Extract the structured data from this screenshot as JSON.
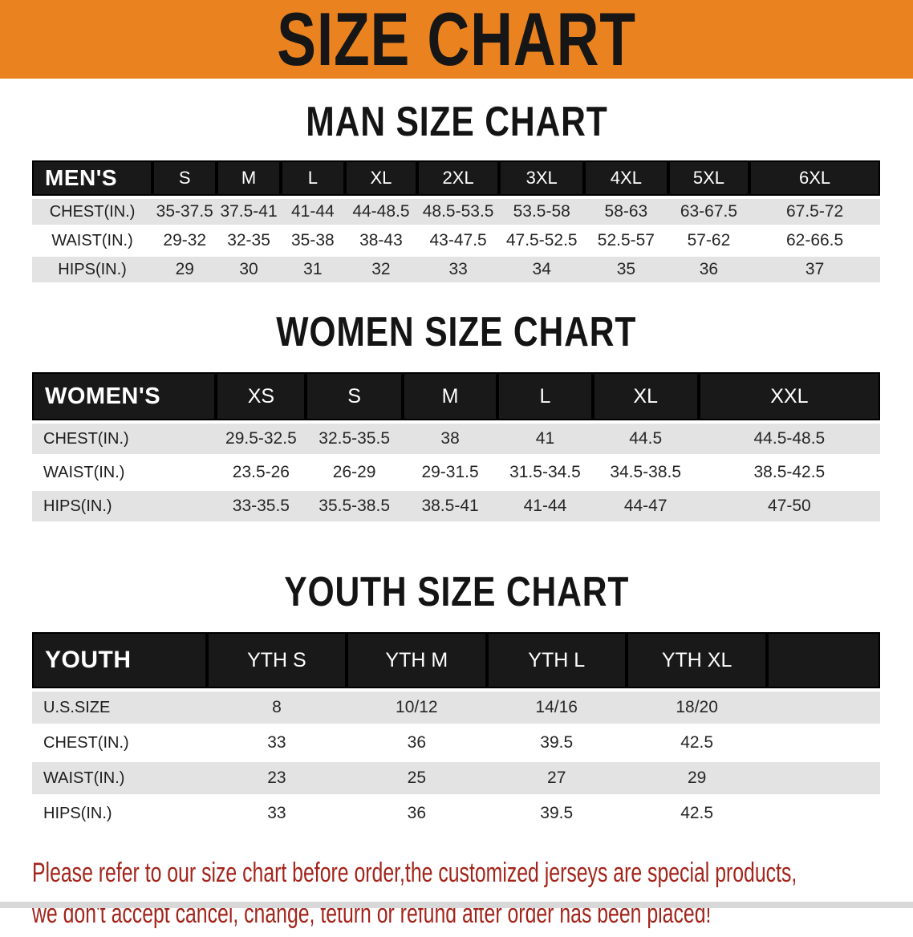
{
  "banner": {
    "title": "SIZE CHART",
    "bg_color": "#EA831F",
    "text_color": "#161616"
  },
  "sections": [
    {
      "heading": "MAN SIZE CHART",
      "table": {
        "label_header": "MEN'S",
        "size_headers": [
          "S",
          "M",
          "L",
          "XL",
          "2XL",
          "3XL",
          "4XL",
          "5XL",
          "6XL"
        ],
        "rows": [
          {
            "label": "CHEST(IN.)",
            "values": [
              "35-37.5",
              "37.5-41",
              "41-44",
              "44-48.5",
              "48.5-53.5",
              "53.5-58",
              "58-63",
              "63-67.5",
              "67.5-72"
            ]
          },
          {
            "label": "WAIST(IN.)",
            "values": [
              "29-32",
              "32-35",
              "35-38",
              "38-43",
              "43-47.5",
              "47.5-52.5",
              "52.5-57",
              "57-62",
              "62-66.5"
            ]
          },
          {
            "label": "HIPS(IN.)",
            "values": [
              "29",
              "30",
              "31",
              "32",
              "33",
              "34",
              "35",
              "36",
              "37"
            ]
          }
        ]
      }
    },
    {
      "heading": "WOMEN SIZE CHART",
      "table": {
        "label_header": "WOMEN'S",
        "size_headers": [
          "XS",
          "S",
          "M",
          "L",
          "XL",
          "XXL"
        ],
        "rows": [
          {
            "label": "CHEST(IN.)",
            "values": [
              "29.5-32.5",
              "32.5-35.5",
              "38",
              "41",
              "44.5",
              "44.5-48.5"
            ]
          },
          {
            "label": "WAIST(IN.)",
            "values": [
              "23.5-26",
              "26-29",
              "29-31.5",
              "31.5-34.5",
              "34.5-38.5",
              "38.5-42.5"
            ]
          },
          {
            "label": "HIPS(IN.)",
            "values": [
              "33-35.5",
              "35.5-38.5",
              "38.5-41",
              "41-44",
              "44-47",
              "47-50"
            ]
          }
        ]
      }
    },
    {
      "heading": "YOUTH SIZE CHART",
      "table": {
        "label_header": "YOUTH",
        "size_headers": [
          "YTH S",
          "YTH M",
          "YTH L",
          "YTH XL"
        ],
        "rows": [
          {
            "label": "U.S.SIZE",
            "values": [
              "8",
              "10/12",
              "14/16",
              "18/20"
            ]
          },
          {
            "label": "CHEST(IN.)",
            "values": [
              "33",
              "36",
              "39.5",
              "42.5"
            ]
          },
          {
            "label": "WAIST(IN.)",
            "values": [
              "23",
              "25",
              "27",
              "29"
            ]
          },
          {
            "label": "HIPS(IN.)",
            "values": [
              "33",
              "36",
              "39.5",
              "42.5"
            ]
          }
        ]
      }
    }
  ],
  "footer": {
    "line1": "Please refer to our size chart before order,the customized jerseys are special products,",
    "line2": "we don't accept cancel, change, teturn or refund after order has been placed!",
    "text_color": "#A3241B"
  },
  "colors": {
    "banner_orange": "#EA831F",
    "header_bar_black": "#191919",
    "row_gray": "#E3E3E3",
    "footer_red": "#A3241B"
  }
}
